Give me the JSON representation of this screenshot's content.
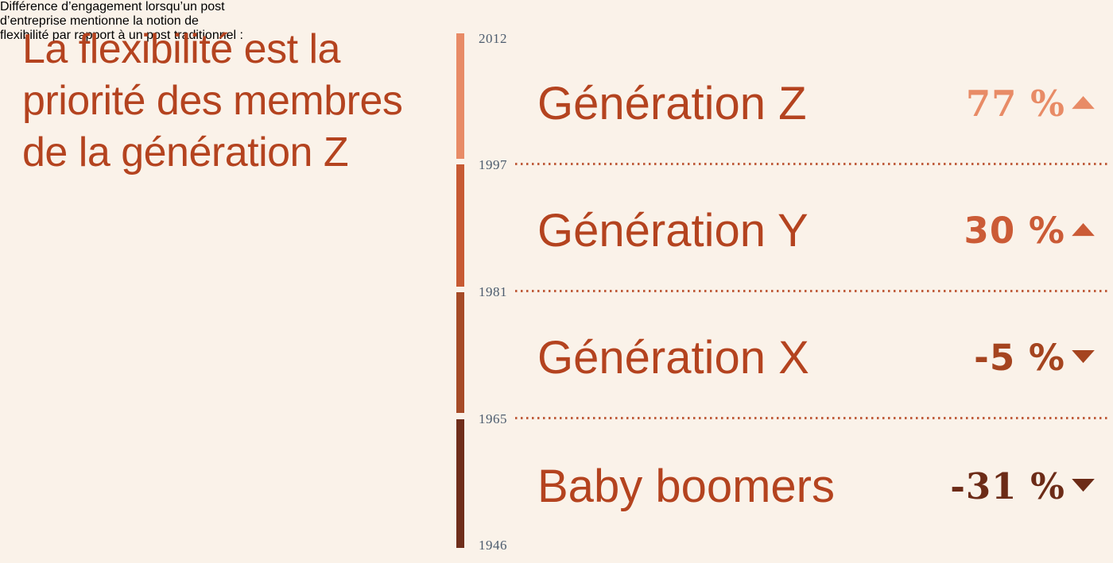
{
  "page": {
    "background": "#FAF2E9"
  },
  "title": {
    "lines": [
      "La flexibilité est la",
      "priorité des membres",
      "de la génération Z"
    ],
    "color": "#B4431F"
  },
  "subtitle": {
    "lines": [
      "Différence d’engagement lorsqu’un post",
      "d’entreprise mentionne la notion de",
      "flexibilité par rapport à un post traditionnel :"
    ],
    "color": "#3E4C5E"
  },
  "timeline": {
    "years": [
      {
        "label": "2012"
      },
      {
        "label": "1997"
      },
      {
        "label": "1981"
      },
      {
        "label": "1965"
      },
      {
        "label": "1946"
      }
    ],
    "year_color": "#4C5C6E",
    "segments": [
      {
        "name": "generation-z",
        "color": "#E88B66"
      },
      {
        "name": "generation-y",
        "color": "#C75A33"
      },
      {
        "name": "generation-x",
        "color": "#A64B27"
      },
      {
        "name": "baby-boomers",
        "color": "#6F2E1B"
      }
    ]
  },
  "separator_color": "#B5431E",
  "row_label_color": "#B4431F",
  "rows": [
    {
      "label": "Génération Z",
      "value": "77 %",
      "trend": "▲",
      "direction": "up",
      "color": "#E88B66"
    },
    {
      "label": "Génération Y",
      "value": "30 %",
      "trend": "▲",
      "direction": "up",
      "color": "#CB5B36"
    },
    {
      "label": "Génération X",
      "value": "-5 %",
      "trend": "▼",
      "direction": "down",
      "color": "#A5441F"
    },
    {
      "label": "Baby boomers",
      "value": "-31 %",
      "trend": "▼",
      "direction": "down",
      "color": "#6C2B17"
    }
  ],
  "chart_data": {
    "type": "bar",
    "title": "La flexibilité est la priorité des membres de la génération Z",
    "subtitle": "Différence d’engagement lorsqu’un post d’entreprise mentionne la notion de flexibilité par rapport à un post traditionnel :",
    "categories": [
      "Génération Z",
      "Génération Y",
      "Génération X",
      "Baby boomers"
    ],
    "values": [
      77,
      30,
      -5,
      -31
    ],
    "unit": "%",
    "trend_directions": [
      "up",
      "up",
      "down",
      "down"
    ],
    "timeline_years": [
      2012,
      1997,
      1981,
      1965,
      1946
    ],
    "legend_position": "none",
    "grid": false
  }
}
